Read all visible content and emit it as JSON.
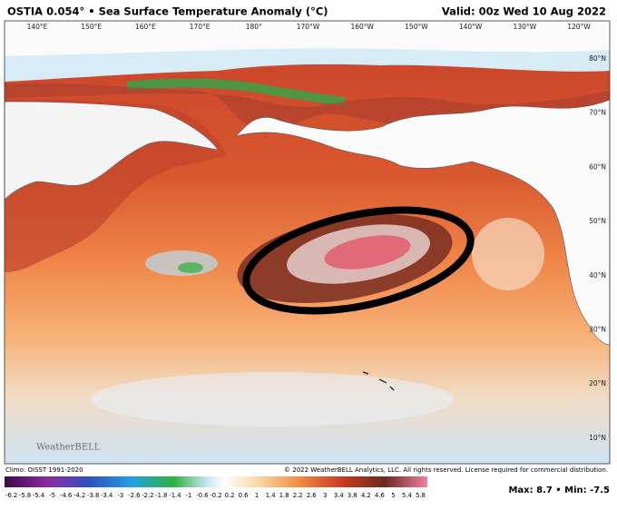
{
  "header": {
    "title": "OSTIA 0.054° • Sea Surface Temperature Anomaly (°C)",
    "valid": "Valid: 00z Wed 10 Aug 2022"
  },
  "map": {
    "lon_labels": [
      "140°E",
      "150°E",
      "160°E",
      "170°E",
      "180°",
      "170°W",
      "160°W",
      "150°W",
      "140°W",
      "130°W",
      "120°W"
    ],
    "lat_labels": [
      "80°N",
      "70°N",
      "60°N",
      "50°N",
      "40°N",
      "30°N",
      "20°N",
      "10°N"
    ]
  },
  "watermark": "WeatherBELL",
  "footer": {
    "climo": "Climo: OISST 1991-2020",
    "copyright": "© 2022 WeatherBELL Analytics, LLC. All rights reserved. License required for commercial distribution."
  },
  "colorbar": {
    "labels": [
      -6.2,
      -5.8,
      -5.4,
      -5,
      -4.6,
      -4.2,
      -3.8,
      -3.4,
      -3,
      -2.6,
      -2.2,
      -1.8,
      -1.4,
      -1,
      -0.6,
      -0.2,
      0.2,
      0.6,
      1,
      1.4,
      1.8,
      2.2,
      2.6,
      3,
      3.4,
      3.8,
      4.2,
      4.6,
      5,
      5.4,
      5.8
    ],
    "stats": "Max: 8.7 • Min: -7.5"
  }
}
